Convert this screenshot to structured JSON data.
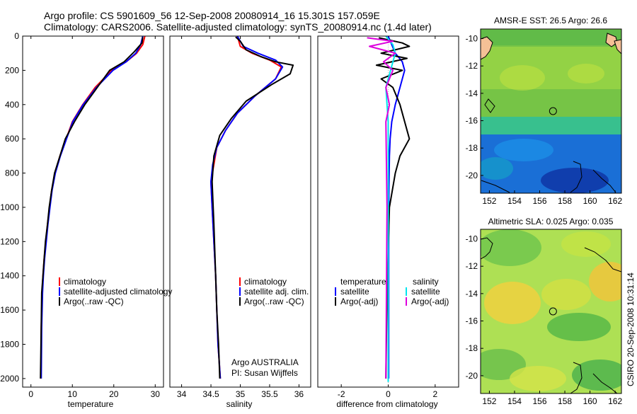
{
  "header": {
    "line1": "Argo profile: CS 5901609_56 12-Sep-2008 20080914_16 15.301S 157.059E",
    "line2": "Climatology: CARS2006. Satellite-adjusted climatology: synTS_20080914.nc (1.4d later)"
  },
  "side_label": "CSIRO 20-Sep-2008 10:31:14",
  "colors": {
    "climatology": "#ff0000",
    "satellite": "#0000ff",
    "argo": "#000000",
    "sal_satellite": "#00e5ee",
    "sal_argo": "#dd00dd",
    "land": "#f5c096"
  },
  "chart_data": [
    {
      "type": "line",
      "xlabel": "temperature",
      "ylabel": "",
      "xlim": [
        -2,
        32
      ],
      "ylim": [
        2050,
        0
      ],
      "xticks": [
        0,
        10,
        20,
        30
      ],
      "yticks": [
        0,
        200,
        400,
        600,
        800,
        1000,
        1200,
        1400,
        1600,
        1800,
        2000
      ],
      "legend": [
        "climatology",
        "satellite-adjusted climatology",
        "Argo(..raw -QC)"
      ],
      "series": [
        {
          "name": "climatology",
          "color": "#ff0000",
          "x": [
            27.5,
            27.0,
            25.5,
            23.0,
            19.5,
            15.5,
            12.5,
            10.0,
            8.5,
            7.0,
            5.8,
            5.0,
            4.5,
            4.0,
            3.6,
            3.2,
            2.9,
            2.7,
            2.5,
            2.4
          ],
          "y": [
            0,
            50,
            100,
            150,
            200,
            300,
            400,
            500,
            600,
            700,
            800,
            900,
            1000,
            1100,
            1200,
            1300,
            1400,
            1500,
            1700,
            2000
          ]
        },
        {
          "name": "satellite-adjusted climatology",
          "color": "#0000ff",
          "x": [
            27.0,
            26.5,
            25.3,
            23.0,
            19.8,
            15.8,
            12.6,
            10.1,
            8.6,
            7.1,
            5.9,
            5.1,
            4.6,
            4.1,
            3.7,
            3.3,
            3.0,
            2.8,
            2.6,
            2.5
          ],
          "y": [
            0,
            50,
            100,
            150,
            200,
            300,
            400,
            500,
            600,
            700,
            800,
            900,
            1000,
            1100,
            1200,
            1300,
            1400,
            1500,
            1700,
            2000
          ]
        },
        {
          "name": "Argo(..raw -QC)",
          "color": "#000000",
          "x": [
            27.0,
            26.8,
            25.0,
            22.5,
            19.0,
            16.0,
            13.0,
            10.5,
            8.3,
            7.0,
            5.7,
            5.0,
            4.4,
            4.0,
            3.5,
            3.2,
            2.9,
            2.6,
            2.3
          ],
          "y": [
            5,
            40,
            90,
            150,
            200,
            300,
            400,
            500,
            600,
            700,
            800,
            900,
            1000,
            1100,
            1200,
            1300,
            1400,
            1500,
            2000
          ]
        }
      ]
    },
    {
      "type": "line",
      "xlabel": "salinity",
      "ylabel": "",
      "xlim": [
        33.8,
        36.2
      ],
      "ylim": [
        2050,
        0
      ],
      "xticks": [
        34,
        34.5,
        35,
        35.5,
        36
      ],
      "yticks": [],
      "legend": [
        "climatology",
        "satellite adj. clim.",
        "Argo(..raw -QC)"
      ],
      "annotation": [
        "Argo AUSTRALIA",
        "PI: Susan Wijffels"
      ],
      "series": [
        {
          "name": "climatology",
          "color": "#ff0000",
          "x": [
            34.95,
            35.0,
            35.2,
            35.5,
            35.7,
            35.6,
            35.25,
            34.95,
            34.75,
            34.6,
            34.55,
            34.5,
            34.52,
            34.55,
            34.58,
            34.6,
            34.62,
            34.64,
            34.66
          ],
          "y": [
            0,
            60,
            100,
            140,
            180,
            250,
            350,
            450,
            550,
            650,
            750,
            850,
            1000,
            1200,
            1400,
            1600,
            1800,
            1900,
            2000
          ]
        },
        {
          "name": "satellite adj. clim.",
          "color": "#0000ff",
          "x": [
            34.95,
            35.05,
            35.3,
            35.6,
            35.72,
            35.6,
            35.25,
            34.95,
            34.75,
            34.6,
            34.53,
            34.5,
            34.52,
            34.55,
            34.58,
            34.6,
            34.62,
            34.64,
            34.66
          ],
          "y": [
            0,
            60,
            100,
            140,
            180,
            250,
            350,
            450,
            550,
            650,
            750,
            850,
            1000,
            1200,
            1400,
            1600,
            1800,
            1900,
            2000
          ]
        },
        {
          "name": "Argo(..raw -QC)",
          "color": "#000000",
          "x": [
            34.92,
            35.0,
            35.1,
            35.35,
            35.6,
            35.9,
            35.85,
            35.55,
            35.1,
            34.85,
            34.65,
            34.55,
            34.52,
            34.55,
            34.58,
            34.6,
            34.63,
            34.65
          ],
          "y": [
            5,
            30,
            80,
            120,
            150,
            170,
            220,
            280,
            380,
            480,
            580,
            700,
            850,
            1100,
            1400,
            1600,
            1800,
            2000
          ]
        }
      ]
    },
    {
      "type": "line",
      "xlabel": "difference from climatology",
      "ylabel": "",
      "xlim": [
        -3,
        3
      ],
      "ylim": [
        2050,
        0
      ],
      "xticks": [
        -2,
        0,
        2
      ],
      "yticks": [],
      "legend": {
        "temperature_title": "temperature",
        "salinity_title": "salinity",
        "temperature": [
          "satellite",
          "Argo(-adj)"
        ],
        "salinity": [
          "satellite",
          "Argo(-adj)"
        ]
      },
      "series": [
        {
          "name": "temperature satellite",
          "color": "#0000ff",
          "x": [
            0.0,
            0.3,
            0.6,
            0.7,
            0.5,
            0.3,
            0.15,
            0.08,
            0.05,
            0.03,
            0.02,
            0.02
          ],
          "y": [
            0,
            100,
            150,
            200,
            300,
            400,
            500,
            600,
            700,
            900,
            1200,
            2000
          ]
        },
        {
          "name": "temperature Argo(-adj)",
          "color": "#000000",
          "x": [
            -0.4,
            0.6,
            0.9,
            -0.3,
            0.8,
            -0.5,
            0.6,
            -0.3,
            0.2,
            0.5,
            0.9,
            0.5,
            0.3,
            0.05,
            -0.05,
            -0.1
          ],
          "y": [
            10,
            40,
            60,
            100,
            130,
            170,
            200,
            250,
            300,
            400,
            600,
            700,
            800,
            1000,
            1500,
            2000
          ]
        },
        {
          "name": "salinity satellite",
          "color": "#00e5ee",
          "x": [
            -0.1,
            0.2,
            0.3,
            0.1,
            -0.1,
            -0.05,
            0.0,
            0.0,
            0.0,
            0.0
          ],
          "y": [
            0,
            50,
            100,
            200,
            300,
            400,
            500,
            800,
            1200,
            2020
          ]
        },
        {
          "name": "salinity Argo(-adj)",
          "color": "#dd00dd",
          "x": [
            -0.9,
            0.2,
            -0.8,
            0.3,
            -0.2,
            0.2,
            -0.1,
            0.05,
            -0.1,
            -0.05,
            -0.1
          ],
          "y": [
            10,
            30,
            60,
            100,
            150,
            200,
            300,
            400,
            500,
            1000,
            2000
          ]
        }
      ]
    }
  ],
  "maps": [
    {
      "title": "AMSR-E SST: 26.5 Argo: 26.6",
      "xticks": [
        152,
        154,
        156,
        158,
        160,
        162
      ],
      "yticks": [
        -10,
        -12,
        -14,
        -16,
        -18,
        -20
      ],
      "xlim": [
        151.3,
        162.5
      ],
      "ylim": [
        -21.3,
        -9.3
      ],
      "marker_lon": 157.06,
      "marker_lat": -15.3
    },
    {
      "title": "Altimetric SLA: 0.025 Argo: 0.035",
      "xticks": [
        152,
        154,
        156,
        158,
        160,
        162
      ],
      "yticks": [
        -10,
        -12,
        -14,
        -16,
        -18,
        -20
      ],
      "xlim": [
        151.3,
        162.5
      ],
      "ylim": [
        -21.3,
        -9.3
      ],
      "marker_lon": 157.06,
      "marker_lat": -15.3
    }
  ]
}
